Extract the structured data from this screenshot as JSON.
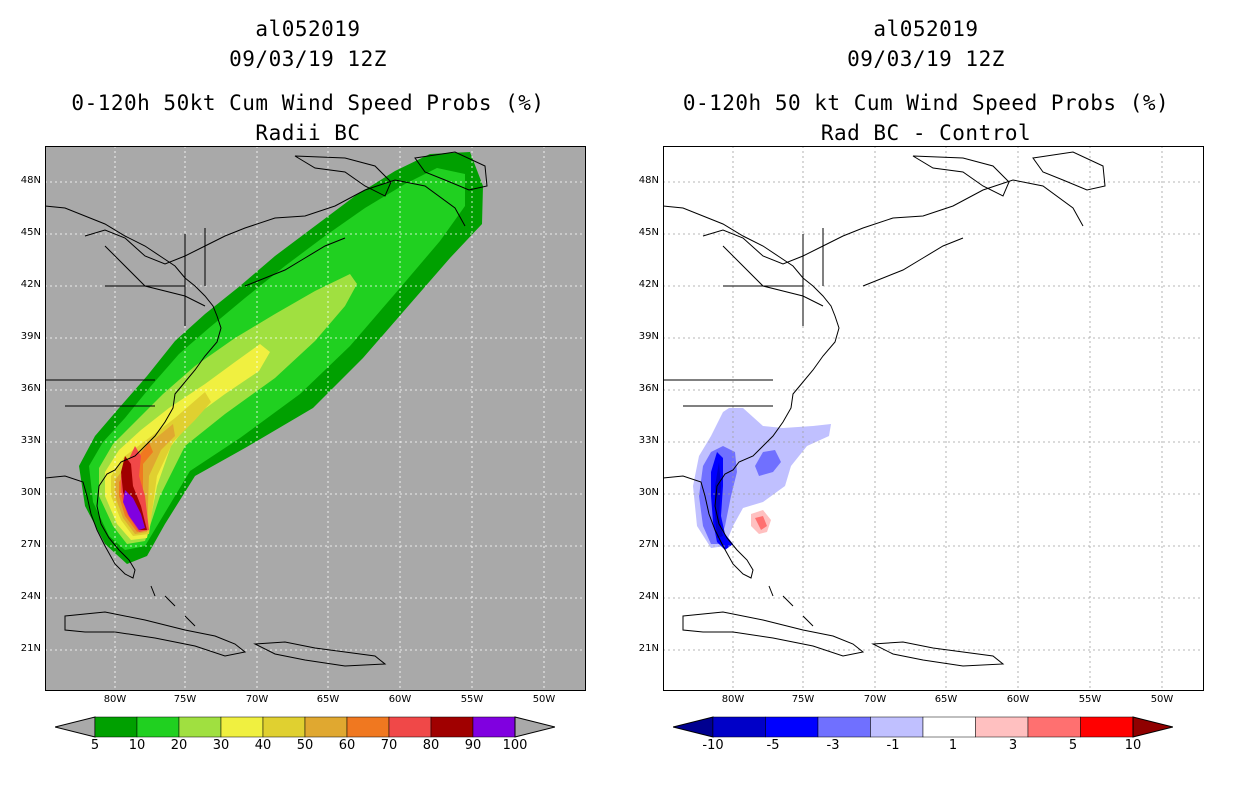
{
  "panels": [
    {
      "id": "left",
      "storm_id": "al052019",
      "datetime": "09/03/19 12Z",
      "title": "0-120h 50kt Cum Wind Speed Probs (%)",
      "subtitle": "Radii BC",
      "background": "#a9a9a9",
      "colorbar": {
        "ticks": [
          "5",
          "10",
          "20",
          "30",
          "40",
          "50",
          "60",
          "70",
          "80",
          "90",
          "100"
        ],
        "colors": [
          "#00a000",
          "#20d020",
          "#a0e040",
          "#f0f040",
          "#e0d030",
          "#e0a830",
          "#f07820",
          "#f04848",
          "#a00000",
          "#8000e0"
        ],
        "end_color": "#a9a9a9"
      }
    },
    {
      "id": "right",
      "storm_id": "al052019",
      "datetime": "09/03/19 12Z",
      "title": "0-120h 50 kt Cum Wind Speed Probs (%)",
      "subtitle": "Rad BC - Control",
      "background": "#ffffff",
      "colorbar": {
        "ticks": [
          "-10",
          "-5",
          "-3",
          "-1",
          "1",
          "3",
          "5",
          "10"
        ],
        "colors": [
          "#0000c8",
          "#0000ff",
          "#7070ff",
          "#c0c0ff",
          "#ffffff",
          "#ffc0c0",
          "#ff7070",
          "#ff0000"
        ],
        "end_left": "#000090",
        "end_right": "#900000"
      }
    }
  ],
  "lat_labels": [
    "48N",
    "45N",
    "42N",
    "39N",
    "36N",
    "33N",
    "30N",
    "27N",
    "24N",
    "21N"
  ],
  "lon_labels": [
    "80W",
    "75W",
    "70W",
    "65W",
    "60W",
    "55W",
    "50W"
  ]
}
